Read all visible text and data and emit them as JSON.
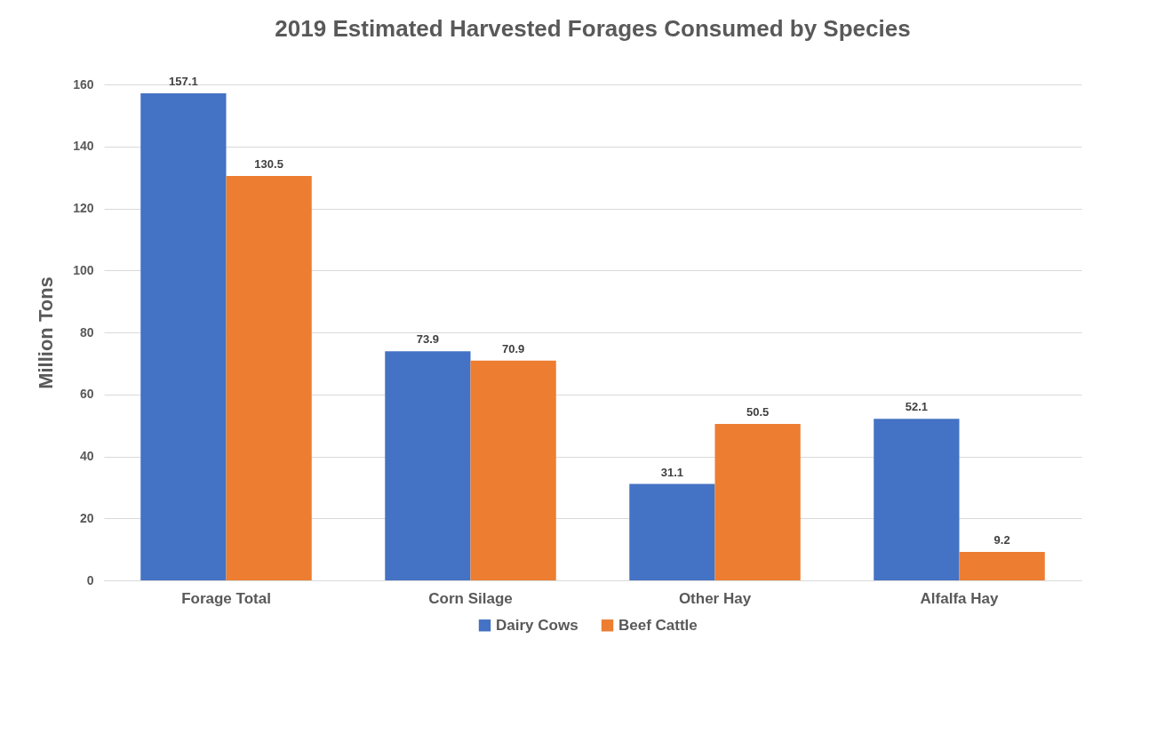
{
  "chart_data": {
    "type": "bar",
    "title": "2019 Estimated Harvested Forages Consumed by Species",
    "ylabel": "Million Tons",
    "categories": [
      "Forage Total",
      "Corn Silage",
      "Other Hay",
      "Alfalfa Hay"
    ],
    "series": [
      {
        "name": "Dairy Cows",
        "color": "#4472c4",
        "values": [
          157.1,
          73.9,
          31.1,
          52.1
        ]
      },
      {
        "name": "Beef Cattle",
        "color": "#ed7d31",
        "values": [
          130.5,
          70.9,
          50.5,
          9.2
        ]
      }
    ],
    "ylim": [
      0,
      160
    ],
    "yticks": [
      0,
      20,
      40,
      60,
      80,
      100,
      120,
      140,
      160
    ],
    "grid": "y",
    "legend": "bottom",
    "data_labels": true
  }
}
